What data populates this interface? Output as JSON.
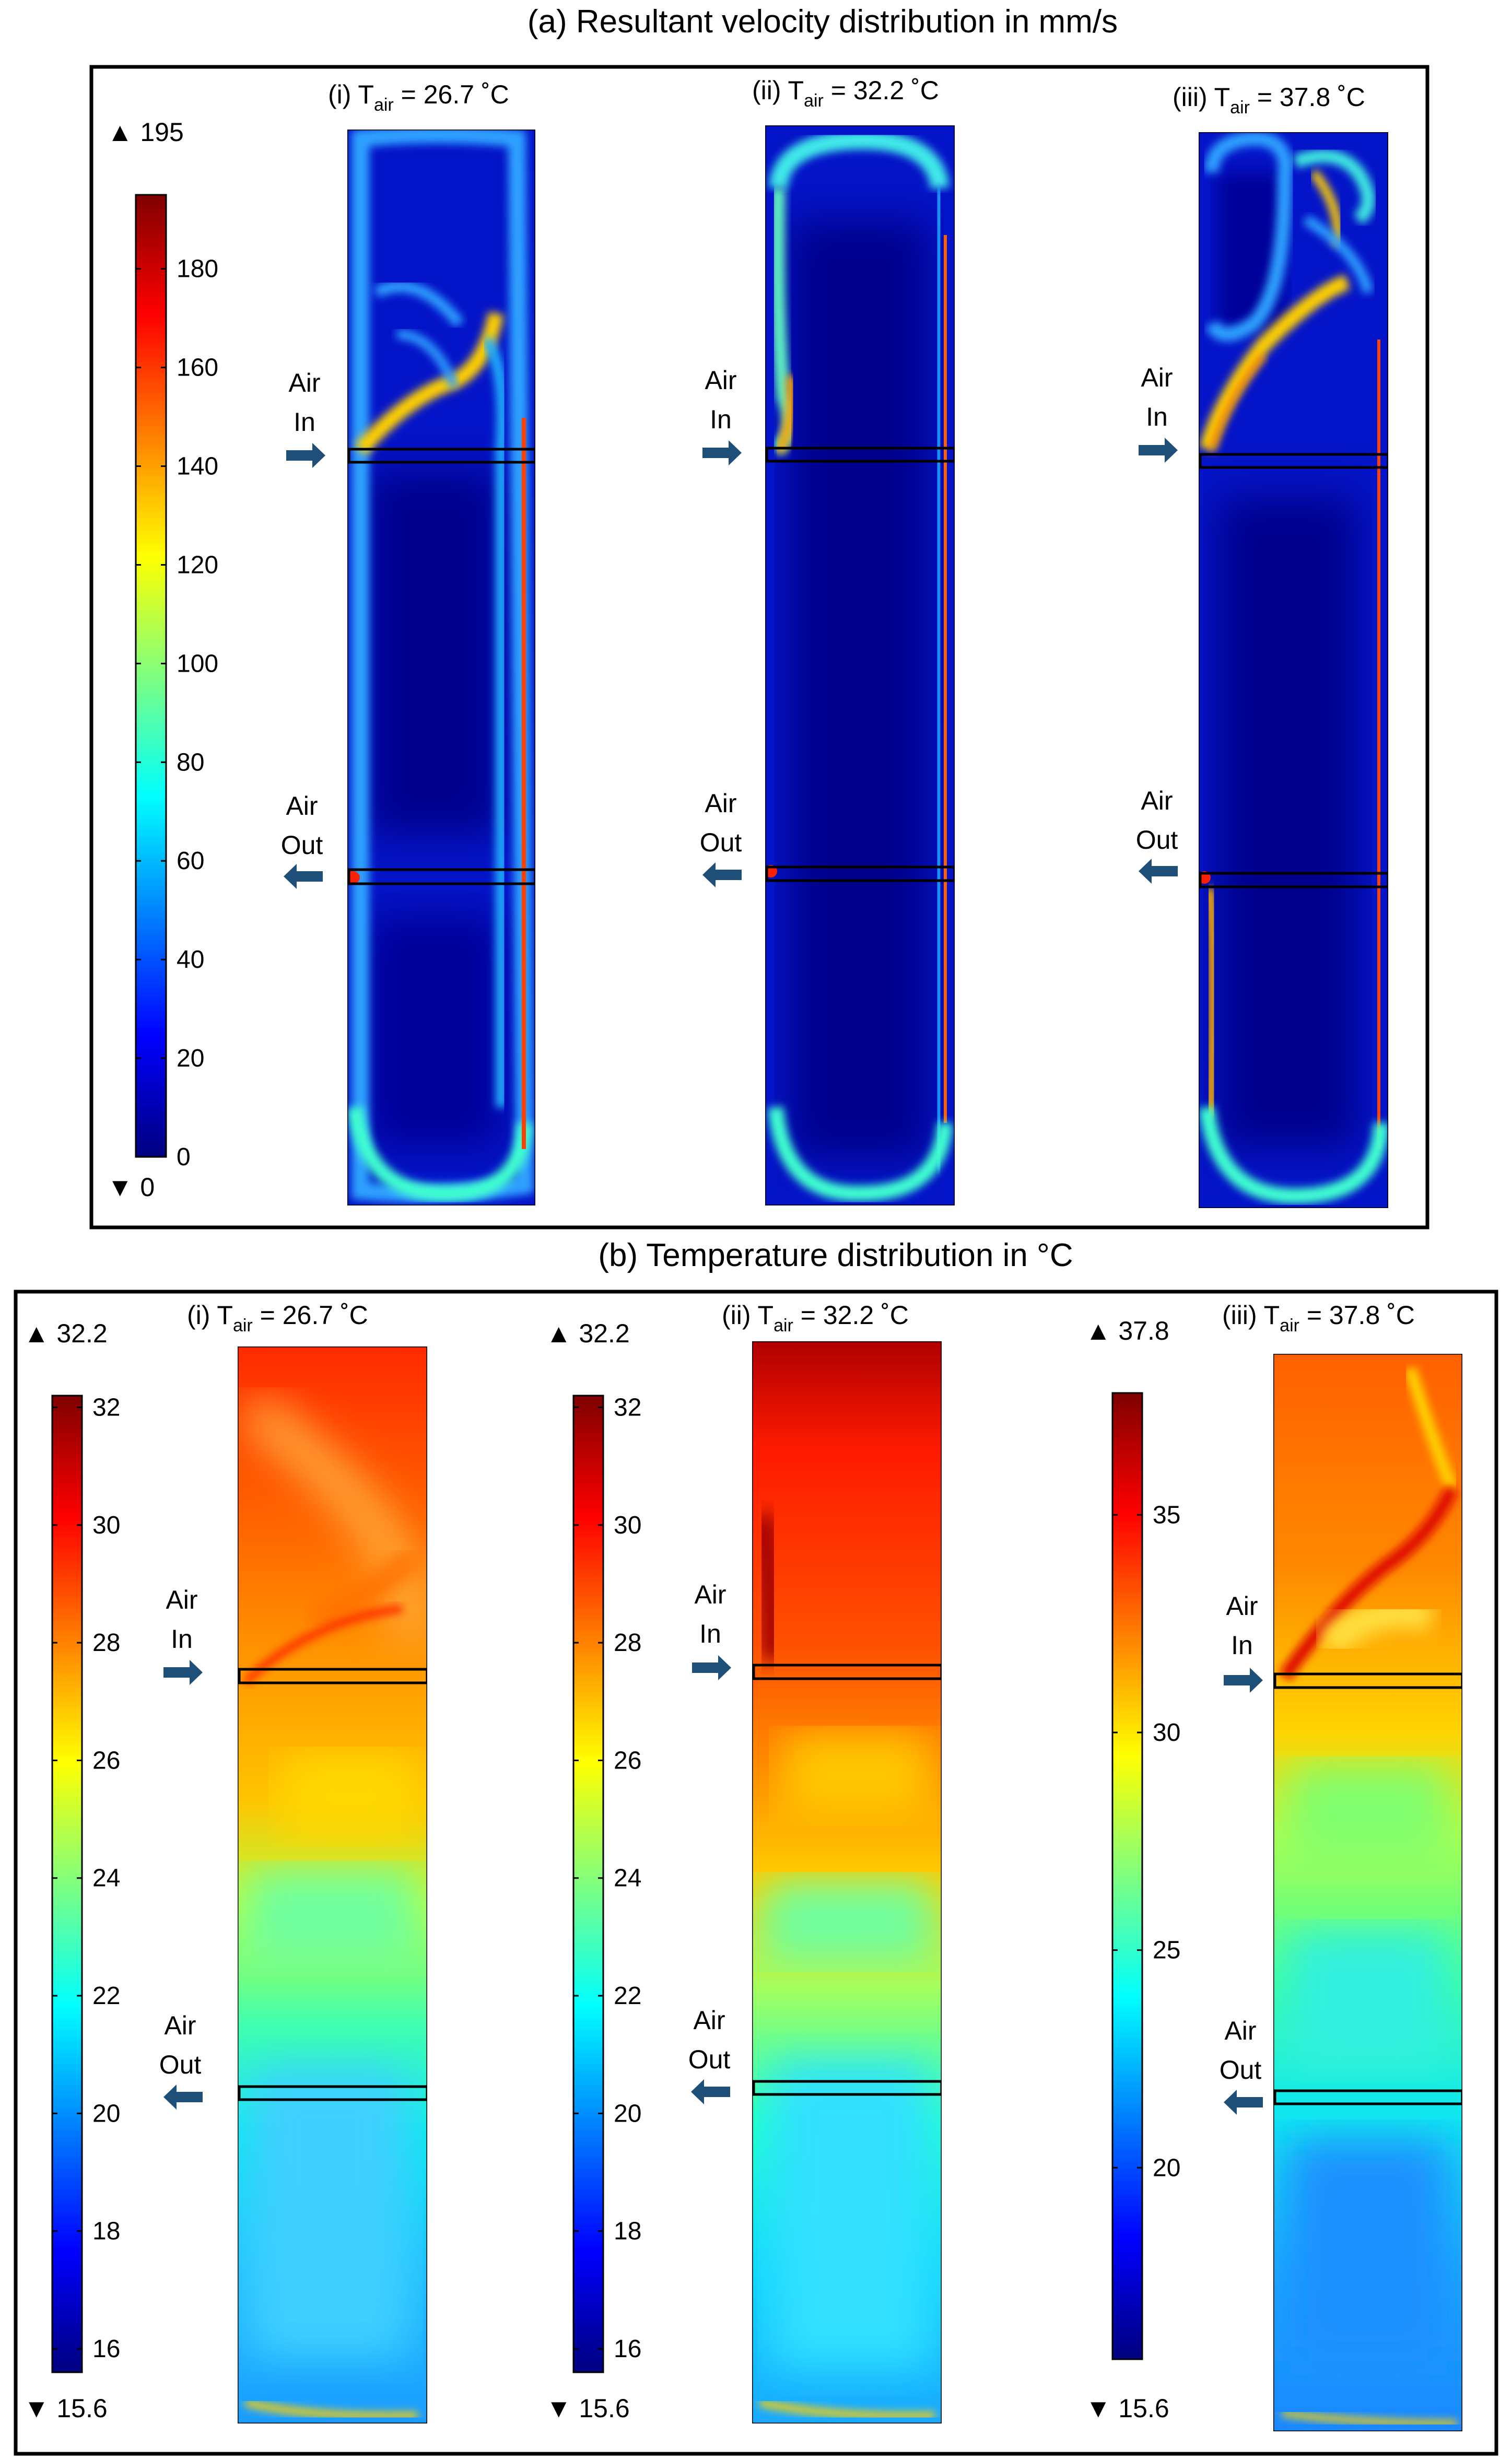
{
  "panel_a": {
    "title": "(a) Resultant velocity distribution in mm/s",
    "colorbar": {
      "max_label": "▲ 195",
      "min_label": "▼ 0",
      "min": 0,
      "max": 195,
      "ticks": [
        "180",
        "160",
        "140",
        "120",
        "100",
        "80",
        "60",
        "40",
        "20",
        "0"
      ],
      "tick_values": [
        180,
        160,
        140,
        120,
        100,
        80,
        60,
        40,
        20,
        0
      ]
    },
    "cases": [
      {
        "label_prefix": "(i) T",
        "label_sub": "air",
        "label_suffix": " = 26.7 ˚C",
        "air_in": [
          "Air",
          "In"
        ],
        "air_out": [
          "Air",
          "Out"
        ]
      },
      {
        "label_prefix": "(ii) T",
        "label_sub": "air",
        "label_suffix": " = 32.2 ˚C",
        "air_in": [
          "Air",
          "In"
        ],
        "air_out": [
          "Air",
          "Out"
        ]
      },
      {
        "label_prefix": "(iii) T",
        "label_sub": "air",
        "label_suffix": " = 37.8 ˚C",
        "air_in": [
          "Air",
          "In"
        ],
        "air_out": [
          "Air",
          "Out"
        ]
      }
    ]
  },
  "panel_b": {
    "title": "(b) Temperature distribution in °C",
    "colorbars": [
      {
        "max_label": "▲ 32.2",
        "min_label": "▼ 15.6",
        "min": 15.6,
        "max": 32.2,
        "ticks": [
          "32",
          "30",
          "28",
          "26",
          "24",
          "22",
          "20",
          "18",
          "16"
        ],
        "tick_values": [
          32,
          30,
          28,
          26,
          24,
          22,
          20,
          18,
          16
        ]
      },
      {
        "max_label": "▲ 32.2",
        "min_label": "▼ 15.6",
        "min": 15.6,
        "max": 32.2,
        "ticks": [
          "32",
          "30",
          "28",
          "26",
          "24",
          "22",
          "20",
          "18",
          "16"
        ],
        "tick_values": [
          32,
          30,
          28,
          26,
          24,
          22,
          20,
          18,
          16
        ]
      },
      {
        "max_label": "▲ 37.8",
        "min_label": "▼ 15.6",
        "min": 15.6,
        "max": 37.8,
        "ticks": [
          "35",
          "30",
          "25",
          "20"
        ],
        "tick_values": [
          35,
          30,
          25,
          20
        ]
      }
    ],
    "cases": [
      {
        "label_prefix": "(i) T",
        "label_sub": "air",
        "label_suffix": " = 26.7 ˚C",
        "air_in": [
          "Air",
          "In"
        ],
        "air_out": [
          "Air",
          "Out"
        ]
      },
      {
        "label_prefix": "(ii) T",
        "label_sub": "air",
        "label_suffix": " = 32.2 ˚C",
        "air_in": [
          "Air",
          "In"
        ],
        "air_out": [
          "Air",
          "Out"
        ]
      },
      {
        "label_prefix": "(iii) T",
        "label_sub": "air",
        "label_suffix": " = 37.8 ˚C",
        "air_in": [
          "Air",
          "In"
        ],
        "air_out": [
          "Air",
          "Out"
        ]
      }
    ]
  },
  "colors": {
    "jet": [
      "#00007f",
      "#0000ff",
      "#007fff",
      "#00ffff",
      "#7fff7f",
      "#ffff00",
      "#ff7f00",
      "#ff0000",
      "#7f0000"
    ],
    "arrow_fill": "#1e4f78",
    "frame": "#000000"
  }
}
